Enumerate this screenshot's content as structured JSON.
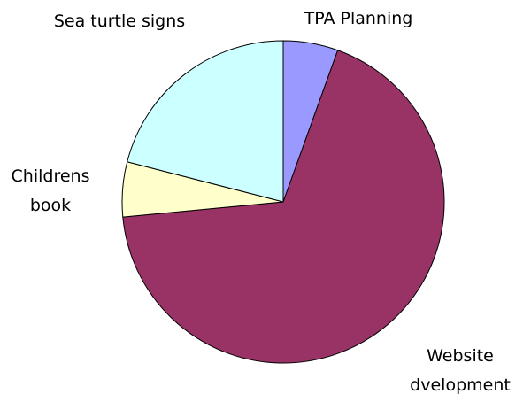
{
  "chart_data": {
    "type": "pie",
    "categories": [
      "TPA Planning",
      "Website dvelopment",
      "Childrens book",
      "Sea turtle signs"
    ],
    "values": [
      5.5,
      68,
      5.5,
      21
    ],
    "colors": [
      "#9999ff",
      "#993366",
      "#ffffcc",
      "#ccffff"
    ]
  }
}
